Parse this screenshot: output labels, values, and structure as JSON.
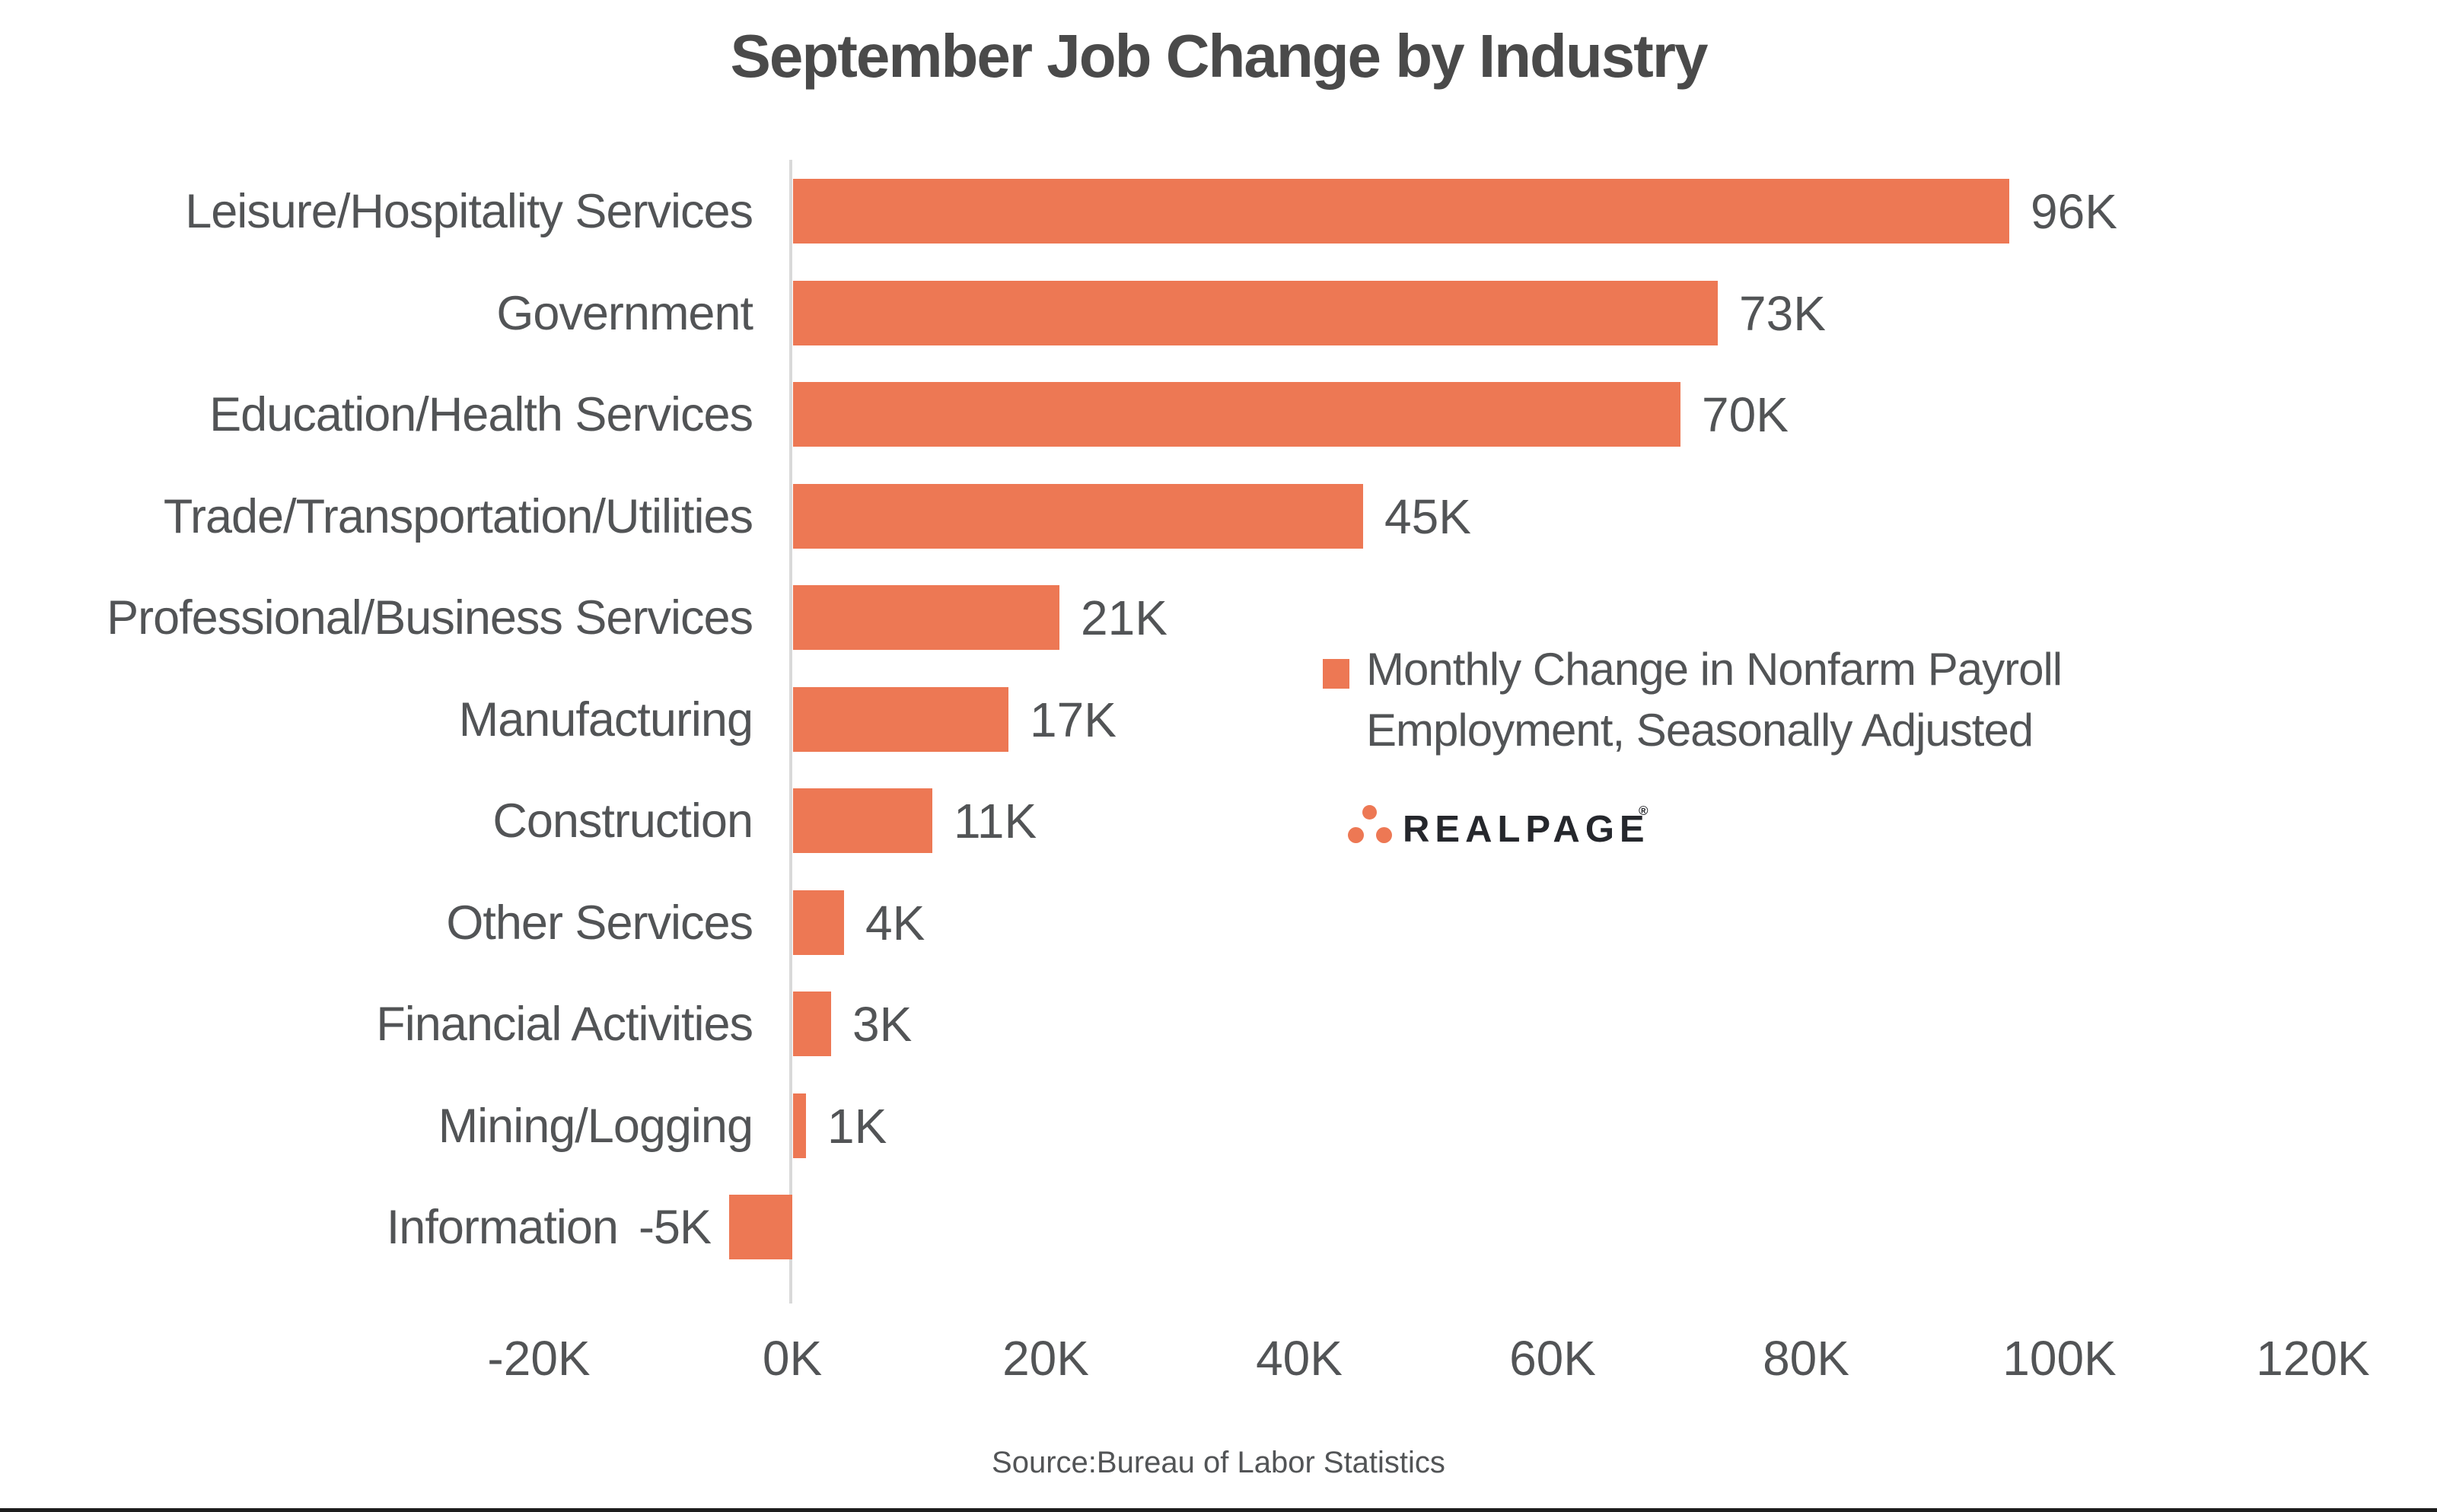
{
  "title": "September Job Change by Industry",
  "legend": {
    "line1": "Monthly Change in Nonfarm Payroll",
    "line2": "Employment, Seasonally Adjusted"
  },
  "logo": {
    "text": "REALPAGE",
    "registered": "®"
  },
  "source": "Source:Bureau of Labor Statistics",
  "colors": {
    "bar": "#ED7854",
    "text": "#525456",
    "title": "#4A4A4A",
    "axis_line": "#D9D9D9",
    "logo_text": "#25272C",
    "bottom_rule": "#1D1D1D"
  },
  "chart_data": {
    "type": "bar",
    "orientation": "horizontal",
    "title": "September Job Change by Industry",
    "series_name": "Monthly Change in Nonfarm Payroll Employment, Seasonally Adjusted",
    "categories": [
      "Leisure/Hospitality Services",
      "Government",
      "Education/Health Services",
      "Trade/Transportation/Utilities",
      "Professional/Business Services",
      "Manufacturing",
      "Construction",
      "Other Services",
      "Financial Activities",
      "Mining/Logging",
      "Information"
    ],
    "values": [
      96,
      73,
      70,
      45,
      21,
      17,
      11,
      4,
      3,
      1,
      -5
    ],
    "value_labels": [
      "96K",
      "73K",
      "70K",
      "45K",
      "21K",
      "17K",
      "11K",
      "4K",
      "3K",
      "1K",
      "-5K"
    ],
    "x_ticks": [
      "-20K",
      "0K",
      "20K",
      "40K",
      "60K",
      "80K",
      "100K",
      "120K"
    ],
    "x_tick_values": [
      -20,
      0,
      20,
      40,
      60,
      80,
      100,
      120
    ],
    "xlim": [
      -20,
      130
    ],
    "unit": "K (thousands of jobs)",
    "grid": false,
    "legend_position": "center-right"
  }
}
